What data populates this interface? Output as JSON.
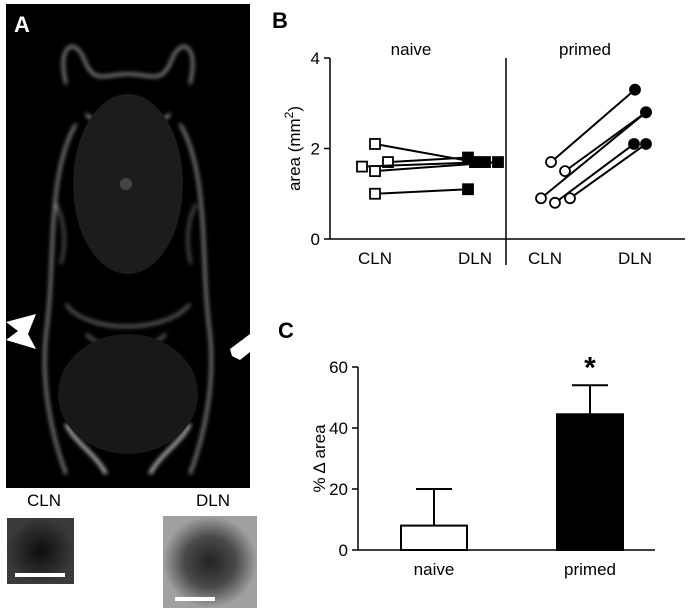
{
  "figure": {
    "panel_a": {
      "letter": "A",
      "inset_left_label": "CLN",
      "inset_right_label": "DLN"
    },
    "panel_b": {
      "letter": "B"
    },
    "panel_c": {
      "letter": "C"
    }
  },
  "chart_data": [
    {
      "type": "line",
      "panel": "B",
      "ylabel": "area (mm2)",
      "ylim": [
        0,
        4
      ],
      "yticks": [
        0,
        2,
        4
      ],
      "groups": [
        {
          "name": "naive",
          "categories": [
            "CLN",
            "DLN"
          ],
          "marker_fill": [
            "#ffffff",
            "#000000"
          ],
          "marker_shape": "square",
          "pairs": [
            [
              2.1,
              1.7
            ],
            [
              1.7,
              1.8
            ],
            [
              1.6,
              1.7
            ],
            [
              1.5,
              1.7
            ],
            [
              1.0,
              1.1
            ]
          ]
        },
        {
          "name": "primed",
          "categories": [
            "CLN",
            "DLN"
          ],
          "marker_fill": [
            "#ffffff",
            "#000000"
          ],
          "marker_shape": "circle",
          "pairs": [
            [
              1.7,
              3.3
            ],
            [
              1.5,
              2.8
            ],
            [
              0.9,
              2.8
            ],
            [
              0.8,
              2.1
            ],
            [
              0.9,
              2.1
            ]
          ]
        }
      ],
      "grid": false
    },
    {
      "type": "bar",
      "panel": "C",
      "ylabel": "% Δ area",
      "ylim": [
        0,
        60
      ],
      "yticks": [
        0,
        20,
        40,
        60
      ],
      "categories": [
        "naive",
        "primed"
      ],
      "values": [
        8,
        44.5
      ],
      "errors": [
        12,
        9.5
      ],
      "colors": [
        "#ffffff",
        "#000000"
      ],
      "annotation": "*",
      "grid": false
    }
  ]
}
